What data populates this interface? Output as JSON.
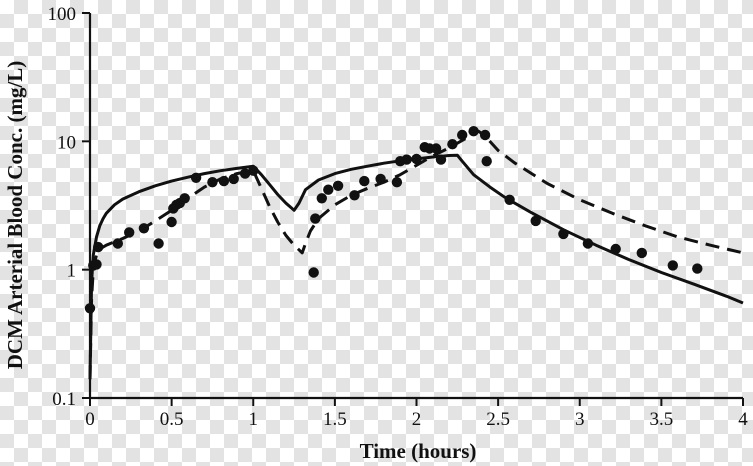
{
  "chart_data": {
    "type": "line",
    "title": "",
    "xlabel": "Time (hours)",
    "ylabel": "DCM Arterial Blood Conc. (mg/L)",
    "x_scale": "linear",
    "y_scale": "log",
    "xlim": [
      0,
      4
    ],
    "ylim": [
      0.1,
      100
    ],
    "x_ticks": [
      "0",
      "0.5",
      "1",
      "1.5",
      "2",
      "2.5",
      "3",
      "3.5",
      "4"
    ],
    "y_ticks": [
      "0.1",
      "1",
      "10",
      "100"
    ],
    "grid": false,
    "legend": "none",
    "series": [
      {
        "style": "solid",
        "color": "#111111",
        "x": [
          0.0,
          0.01,
          0.02,
          0.04,
          0.06,
          0.08,
          0.1,
          0.15,
          0.2,
          0.3,
          0.4,
          0.5,
          0.6,
          0.7,
          0.8,
          0.9,
          1.0,
          1.05,
          1.1,
          1.15,
          1.2,
          1.25,
          1.28,
          1.32,
          1.4,
          1.5,
          1.6,
          1.7,
          1.8,
          1.9,
          2.0,
          2.1,
          2.2,
          2.25,
          2.28,
          2.35,
          2.45,
          2.55,
          2.7,
          2.9,
          3.1,
          3.3,
          3.5,
          3.7,
          3.9,
          4.0
        ],
        "y": [
          0.14,
          0.8,
          1.3,
          1.8,
          2.2,
          2.5,
          2.75,
          3.2,
          3.55,
          4.05,
          4.5,
          4.9,
          5.25,
          5.6,
          5.9,
          6.15,
          6.4,
          5.5,
          4.6,
          3.85,
          3.3,
          2.9,
          3.3,
          4.2,
          5.0,
          5.6,
          6.05,
          6.4,
          6.75,
          7.05,
          7.3,
          7.55,
          7.75,
          7.8,
          7.0,
          5.5,
          4.4,
          3.6,
          2.8,
          2.05,
          1.55,
          1.2,
          0.95,
          0.77,
          0.62,
          0.55
        ]
      },
      {
        "style": "dashed",
        "color": "#111111",
        "x": [
          0.0,
          0.01,
          0.02,
          0.04,
          0.06,
          0.1,
          0.2,
          0.3,
          0.4,
          0.5,
          0.6,
          0.7,
          0.8,
          0.9,
          1.0,
          1.05,
          1.1,
          1.15,
          1.2,
          1.25,
          1.3,
          1.32,
          1.35,
          1.4,
          1.5,
          1.6,
          1.7,
          1.8,
          1.9,
          2.0,
          2.1,
          2.2,
          2.3,
          2.38,
          2.42,
          2.5,
          2.6,
          2.8,
          3.0,
          3.2,
          3.4,
          3.6,
          3.8,
          4.0
        ],
        "y": [
          0.14,
          0.6,
          1.0,
          1.3,
          1.45,
          1.55,
          1.75,
          2.0,
          2.4,
          2.9,
          3.6,
          4.4,
          5.1,
          5.6,
          5.9,
          4.3,
          3.1,
          2.35,
          1.85,
          1.55,
          1.35,
          1.6,
          2.0,
          2.5,
          3.2,
          3.8,
          4.3,
          4.8,
          5.5,
          6.5,
          7.7,
          8.9,
          10.5,
          12.0,
          11.0,
          8.5,
          6.8,
          4.7,
          3.5,
          2.75,
          2.2,
          1.8,
          1.55,
          1.35
        ]
      },
      {
        "style": "markers",
        "color": "#111111",
        "x": [
          0.0,
          0.02,
          0.04,
          0.05,
          0.17,
          0.24,
          0.33,
          0.42,
          0.5,
          0.51,
          0.53,
          0.55,
          0.58,
          0.65,
          0.75,
          0.82,
          0.88,
          0.95,
          1.0,
          1.37,
          1.38,
          1.42,
          1.46,
          1.52,
          1.62,
          1.68,
          1.78,
          1.88,
          1.9,
          1.94,
          2.0,
          2.05,
          2.08,
          2.12,
          2.15,
          2.22,
          2.28,
          2.35,
          2.42,
          2.43,
          2.57,
          2.73,
          2.9,
          3.05,
          3.22,
          3.38,
          3.57,
          3.72
        ],
        "y": [
          0.5,
          1.08,
          1.1,
          1.5,
          1.6,
          1.95,
          2.1,
          1.6,
          2.35,
          3.0,
          3.2,
          3.3,
          3.6,
          5.2,
          4.8,
          4.9,
          5.1,
          5.6,
          5.9,
          0.95,
          2.5,
          3.6,
          4.2,
          4.5,
          3.8,
          4.9,
          5.1,
          4.8,
          7.0,
          7.2,
          7.3,
          9.0,
          8.8,
          8.8,
          7.2,
          9.5,
          11.2,
          12.0,
          11.2,
          7.0,
          3.5,
          2.4,
          1.9,
          1.6,
          1.45,
          1.35,
          1.08,
          1.02
        ]
      }
    ]
  }
}
